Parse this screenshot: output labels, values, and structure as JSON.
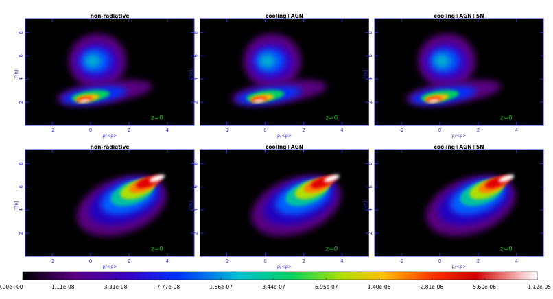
{
  "chart_data": [
    {
      "type": "heatmap",
      "title": "non-radiative",
      "annotation": "z=0",
      "xlabel": "ρ/<ρ>",
      "ylabel": "T[K]",
      "xlim": [
        -3.4,
        5.4
      ],
      "ylim": [
        0,
        9.2
      ],
      "xticks": [
        -2,
        0,
        2,
        4
      ],
      "yticks": [
        2,
        4,
        6,
        8
      ]
    },
    {
      "type": "heatmap",
      "title": "cooling+AGN",
      "annotation": "z=0",
      "xlabel": "ρ/<ρ>",
      "ylabel": "T[K]",
      "xlim": [
        -3.4,
        5.4
      ],
      "ylim": [
        0,
        9.2
      ],
      "xticks": [
        -2,
        0,
        2,
        4
      ],
      "yticks": [
        2,
        4,
        6,
        8
      ]
    },
    {
      "type": "heatmap",
      "title": "cooling+AGN+SN",
      "annotation": "z=0",
      "xlabel": "ρ/<ρ>",
      "ylabel": "T[K]",
      "xlim": [
        -3.4,
        5.4
      ],
      "ylim": [
        0,
        9.2
      ],
      "xticks": [
        -2,
        0,
        2,
        4
      ],
      "yticks": [
        2,
        4,
        6,
        8
      ]
    },
    {
      "type": "heatmap",
      "title": "non-radiative",
      "annotation": "z=0",
      "xlabel": "ρ/<ρ>",
      "ylabel": "T[K]",
      "xlim": [
        -3.4,
        5.4
      ],
      "ylim": [
        0,
        9.2
      ],
      "xticks": [
        -2,
        0,
        2,
        4
      ],
      "yticks": [
        2,
        4,
        6,
        8
      ]
    },
    {
      "type": "heatmap",
      "title": "cooling+AGN",
      "annotation": "z=0",
      "xlabel": "ρ/<ρ>",
      "ylabel": "T[K]",
      "xlim": [
        -3.4,
        5.4
      ],
      "ylim": [
        0,
        9.2
      ],
      "xticks": [
        -2,
        0,
        2,
        4
      ],
      "yticks": [
        2,
        4,
        6,
        8
      ]
    },
    {
      "type": "heatmap",
      "title": "cooling+AGN+SN",
      "annotation": "z=0",
      "xlabel": "ρ/<ρ>",
      "ylabel": "T[K]",
      "xlim": [
        -3.4,
        5.4
      ],
      "ylim": [
        0,
        9.2
      ],
      "xticks": [
        -2,
        0,
        2,
        4
      ],
      "yticks": [
        2,
        4,
        6,
        8
      ]
    }
  ],
  "colorbar": {
    "ticks": [
      {
        "value": 0,
        "label": "0.00e+00"
      },
      {
        "value": 1.11e-08,
        "label": "1.11e-08"
      },
      {
        "value": 3.31e-08,
        "label": "3.31e-08"
      },
      {
        "value": 7.77e-08,
        "label": "7.77e-08"
      },
      {
        "value": 1.66e-07,
        "label": "1.66e-07"
      },
      {
        "value": 3.44e-07,
        "label": "3.44e-07"
      },
      {
        "value": 6.95e-07,
        "label": "6.95e-07"
      },
      {
        "value": 1.4e-06,
        "label": "1.40e-06"
      },
      {
        "value": 2.81e-06,
        "label": "2.81e-06"
      },
      {
        "value": 5.6e-06,
        "label": "5.60e-06"
      },
      {
        "value": 1.12e-05,
        "label": "1.12e-05"
      }
    ]
  }
}
